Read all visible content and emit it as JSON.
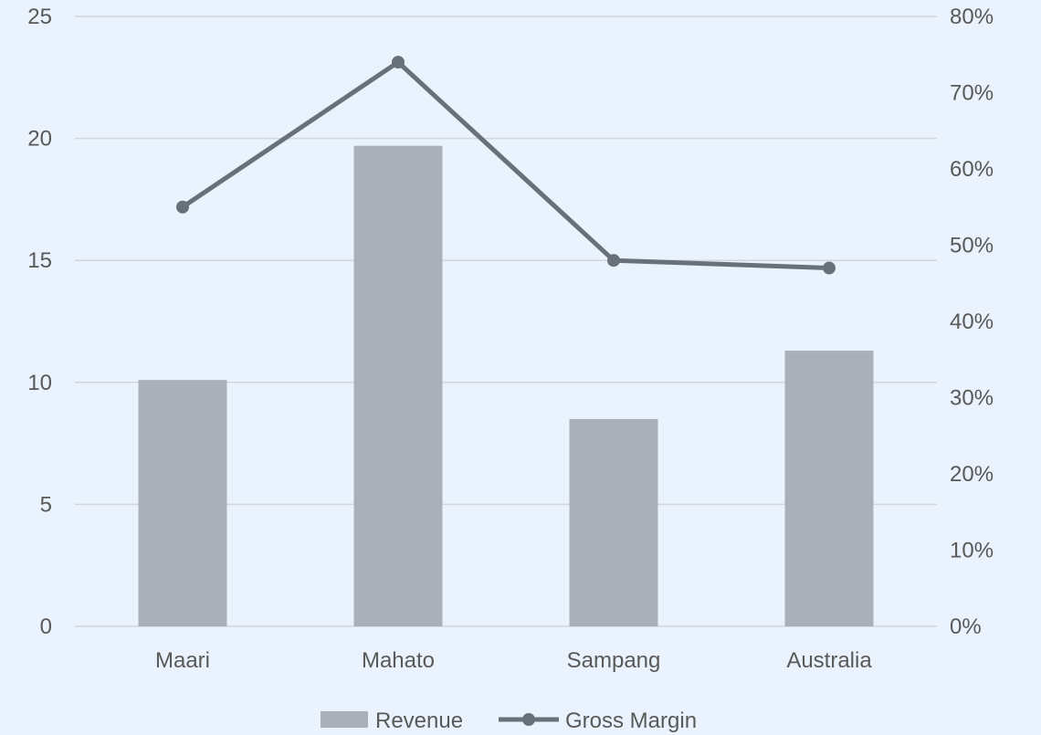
{
  "chart_data": {
    "type": "bar",
    "categories": [
      "Maari",
      "Mahato",
      "Sampang",
      "Australia"
    ],
    "series": [
      {
        "name": "Revenue",
        "type": "bar",
        "axis": "left",
        "values": [
          10.1,
          19.7,
          8.5,
          11.3
        ]
      },
      {
        "name": "Gross Margin",
        "type": "line",
        "axis": "right",
        "values": [
          0.55,
          0.74,
          0.48,
          0.47
        ]
      }
    ],
    "y_left": {
      "min": 0,
      "max": 25,
      "ticks": [
        0,
        5,
        10,
        15,
        20,
        25
      ],
      "tick_labels": [
        "0",
        "5",
        "10",
        "15",
        "20",
        "25"
      ]
    },
    "y_right": {
      "min": 0,
      "max": 0.8,
      "ticks": [
        0,
        0.1,
        0.2,
        0.3,
        0.4,
        0.5,
        0.6,
        0.7,
        0.8
      ],
      "tick_labels": [
        "0%",
        "10%",
        "20%",
        "30%",
        "40%",
        "50%",
        "60%",
        "70%",
        "80%"
      ]
    },
    "grid": true,
    "legend": {
      "position": "bottom",
      "entries": [
        "Revenue",
        "Gross Margin"
      ]
    },
    "colors": {
      "background": "#eaf3fd",
      "bar": "#abb0b8",
      "line": "#687177",
      "grid": "#d0d6dc",
      "text": "#595959"
    }
  }
}
